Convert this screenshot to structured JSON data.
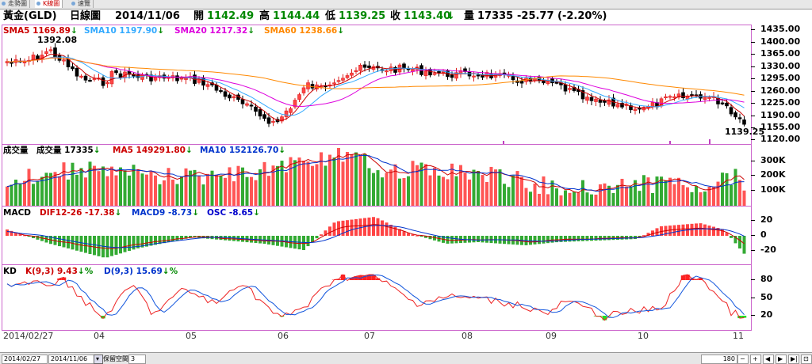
{
  "tabs": [
    {
      "label": "走勢圖",
      "active": false
    },
    {
      "label": "K線圖",
      "active": true
    },
    {
      "label": "速覽",
      "active": false
    }
  ],
  "header": {
    "symbol": "黃金(GLD)",
    "period": "日線圖",
    "date": "2014/11/06",
    "open_label": "開",
    "open": "1142.49",
    "high_label": "高",
    "high": "1144.44",
    "low_label": "低",
    "low": "1139.25",
    "close_label": "收",
    "close": "1143.40",
    "close_arrow": "↓",
    "vol_label": "量",
    "vol": "17335",
    "change": "-25.77 (-2.20%)"
  },
  "price_panel": {
    "indicators": [
      {
        "label": "SMA5 1169.89",
        "arrow": "↓",
        "color": "#cc0000"
      },
      {
        "label": "SMA10 1197.90",
        "arrow": "↓",
        "color": "#33aaff"
      },
      {
        "label": "SMA20 1217.32",
        "arrow": "↓",
        "color": "#dd00dd"
      },
      {
        "label": "SMA60 1238.66",
        "arrow": "↓",
        "color": "#ff8800"
      }
    ],
    "high_note": "1392.08",
    "low_note": "1139.25",
    "axis": [
      "1435.00",
      "1400.00",
      "1365.00",
      "1330.00",
      "1295.00",
      "1260.00",
      "1225.00",
      "1190.00",
      "1155.00",
      "1120.00"
    ]
  },
  "volume_panel": {
    "indicators": [
      {
        "label": "成交量",
        "color": "#000000",
        "arrow": ""
      },
      {
        "label": "成交量 17335",
        "arrow": "↓",
        "color": "#000000"
      },
      {
        "label": "MA5 149291.80",
        "arrow": "↓",
        "color": "#cc0000"
      },
      {
        "label": "MA10 152126.70",
        "arrow": "↓",
        "color": "#0033cc"
      }
    ],
    "axis": [
      "300K",
      "200K",
      "100K"
    ]
  },
  "macd_panel": {
    "indicators": [
      {
        "label": "MACD",
        "color": "#000000",
        "arrow": ""
      },
      {
        "label": "DIF12-26 -17.38",
        "arrow": "↓",
        "color": "#cc0000"
      },
      {
        "label": "MACD9 -8.73",
        "arrow": "↓",
        "color": "#0033cc"
      },
      {
        "label": "OSC -8.65",
        "arrow": "↓",
        "color": "#0000cc"
      }
    ],
    "axis": [
      "20",
      "0",
      "-20"
    ]
  },
  "kd_panel": {
    "indicators": [
      {
        "label": "KD",
        "color": "#000000",
        "arrow": ""
      },
      {
        "label": "K(9,3) 9.43",
        "arrow": "↓%",
        "color": "#cc0000"
      },
      {
        "label": "D(9,3) 15.69",
        "arrow": "↓%",
        "color": "#0033cc"
      }
    ],
    "axis": [
      "80",
      "50",
      "20"
    ]
  },
  "x_axis": [
    "2014/02/27",
    "04",
    "05",
    "06",
    "07",
    "08",
    "09",
    "10",
    "11"
  ],
  "bottom_bar": {
    "start_date": "2014/02/27",
    "end_date": "2014/11/06",
    "keep_label": "保留空間",
    "keep_value": "3",
    "bars_count": "180"
  }
}
